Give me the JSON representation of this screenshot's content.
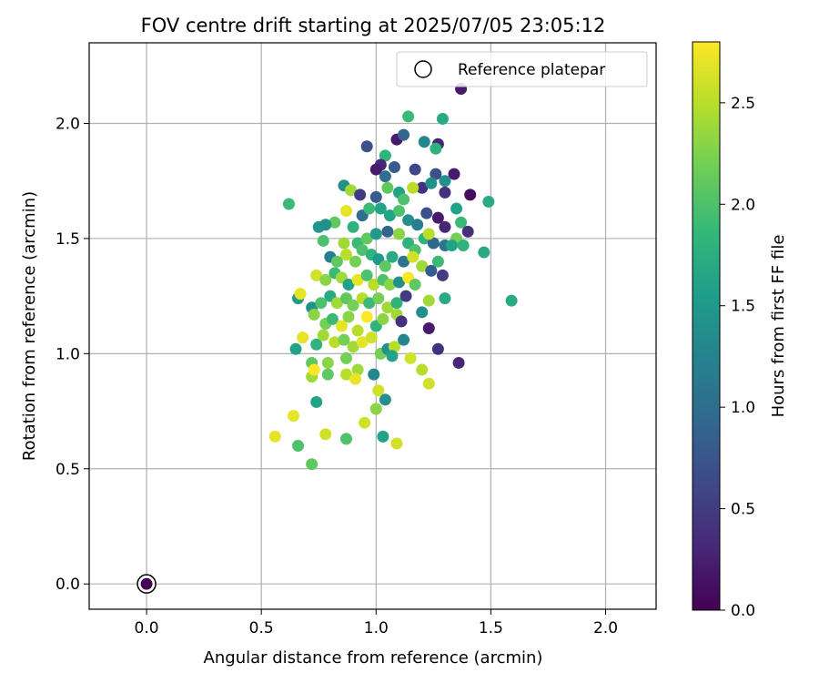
{
  "chart_data": {
    "type": "scatter",
    "title": "FOV centre drift starting at 2025/07/05 23:05:12",
    "xlabel": "Angular distance from reference (arcmin)",
    "ylabel": "Rotation from reference (arcmin)",
    "xlim": [
      -0.25,
      2.22
    ],
    "ylim": [
      -0.11,
      2.35
    ],
    "xticks": [
      "0.0",
      "0.5",
      "1.0",
      "1.5",
      "2.0"
    ],
    "xtick_values": [
      0.0,
      0.5,
      1.0,
      1.5,
      2.0
    ],
    "yticks": [
      "0.0",
      "0.5",
      "1.0",
      "1.5",
      "2.0"
    ],
    "ytick_values": [
      0.0,
      0.5,
      1.0,
      1.5,
      2.0
    ],
    "grid": true,
    "legend": {
      "position": "upper-right",
      "entries": [
        "Reference platepar"
      ]
    },
    "colormap": "viridis",
    "colorbar": {
      "label": "Hours from first FF file",
      "range": [
        0.0,
        2.8
      ],
      "ticks": [
        "0.0",
        "0.5",
        "1.0",
        "1.5",
        "2.0",
        "2.5"
      ],
      "tick_values": [
        0.0,
        0.5,
        1.0,
        1.5,
        2.0,
        2.5
      ]
    },
    "reference_point": {
      "x": 0.0,
      "y": 0.0,
      "hours": 0.0
    },
    "points": [
      [
        1.37,
        2.15,
        0.2
      ],
      [
        1.14,
        2.03,
        1.9
      ],
      [
        1.29,
        2.02,
        1.7
      ],
      [
        0.96,
        1.9,
        0.7
      ],
      [
        1.27,
        1.91,
        0.3
      ],
      [
        1.21,
        1.92,
        1.3
      ],
      [
        1.09,
        1.93,
        0.2
      ],
      [
        1.12,
        1.95,
        0.9
      ],
      [
        1.26,
        1.89,
        1.8
      ],
      [
        1.04,
        1.86,
        1.8
      ],
      [
        1.02,
        1.82,
        0.3
      ],
      [
        1.0,
        1.8,
        0.2
      ],
      [
        1.08,
        1.81,
        0.8
      ],
      [
        1.17,
        1.8,
        0.6
      ],
      [
        1.26,
        1.78,
        0.7
      ],
      [
        1.34,
        1.78,
        0.2
      ],
      [
        1.2,
        1.72,
        0.4
      ],
      [
        1.3,
        1.75,
        1.4
      ],
      [
        1.41,
        1.69,
        0.1
      ],
      [
        1.3,
        1.7,
        0.4
      ],
      [
        0.86,
        1.73,
        1.4
      ],
      [
        0.89,
        1.71,
        2.4
      ],
      [
        0.93,
        1.69,
        0.5
      ],
      [
        1.0,
        1.68,
        0.8
      ],
      [
        1.04,
        1.77,
        1.0
      ],
      [
        1.05,
        1.72,
        2.1
      ],
      [
        1.1,
        1.7,
        1.6
      ],
      [
        1.12,
        1.67,
        2.0
      ],
      [
        1.16,
        1.72,
        2.5
      ],
      [
        1.24,
        1.74,
        1.4
      ],
      [
        1.35,
        1.63,
        1.6
      ],
      [
        1.49,
        1.66,
        1.7
      ],
      [
        0.62,
        1.65,
        1.9
      ],
      [
        0.82,
        1.57,
        2.1
      ],
      [
        0.75,
        1.55,
        1.5
      ],
      [
        0.78,
        1.56,
        1.4
      ],
      [
        0.87,
        1.62,
        2.7
      ],
      [
        0.9,
        1.55,
        1.8
      ],
      [
        0.94,
        1.6,
        1.0
      ],
      [
        0.97,
        1.63,
        1.9
      ],
      [
        1.02,
        1.63,
        1.6
      ],
      [
        1.06,
        1.6,
        1.6
      ],
      [
        1.1,
        1.62,
        2.0
      ],
      [
        1.14,
        1.58,
        1.4
      ],
      [
        1.18,
        1.56,
        1.2
      ],
      [
        1.22,
        1.61,
        0.7
      ],
      [
        1.27,
        1.59,
        0.2
      ],
      [
        1.3,
        1.55,
        0.3
      ],
      [
        1.37,
        1.57,
        1.9
      ],
      [
        1.4,
        1.53,
        0.4
      ],
      [
        1.35,
        1.5,
        2.2
      ],
      [
        1.21,
        1.5,
        1.8
      ],
      [
        1.25,
        1.48,
        0.9
      ],
      [
        1.3,
        1.47,
        1.1
      ],
      [
        1.33,
        1.47,
        1.6
      ],
      [
        1.38,
        1.47,
        1.8
      ],
      [
        1.47,
        1.44,
        1.7
      ],
      [
        0.77,
        1.49,
        2.0
      ],
      [
        0.86,
        1.48,
        2.4
      ],
      [
        0.92,
        1.48,
        1.9
      ],
      [
        0.96,
        1.5,
        2.1
      ],
      [
        1.0,
        1.52,
        1.5
      ],
      [
        1.05,
        1.53,
        0.9
      ],
      [
        1.1,
        1.52,
        2.3
      ],
      [
        1.14,
        1.48,
        1.8
      ],
      [
        1.17,
        1.45,
        2.0
      ],
      [
        1.23,
        1.52,
        2.5
      ],
      [
        1.27,
        1.4,
        1.9
      ],
      [
        0.8,
        1.42,
        1.2
      ],
      [
        0.83,
        1.4,
        2.1
      ],
      [
        0.87,
        1.43,
        2.5
      ],
      [
        0.91,
        1.4,
        2.2
      ],
      [
        0.94,
        1.45,
        2.0
      ],
      [
        0.98,
        1.43,
        1.8
      ],
      [
        1.01,
        1.41,
        1.5
      ],
      [
        1.04,
        1.38,
        2.1
      ],
      [
        1.07,
        1.42,
        1.7
      ],
      [
        1.12,
        1.4,
        1.1
      ],
      [
        1.16,
        1.42,
        2.6
      ],
      [
        1.2,
        1.38,
        2.4
      ],
      [
        1.24,
        1.36,
        0.8
      ],
      [
        1.29,
        1.34,
        0.5
      ],
      [
        0.74,
        1.34,
        2.6
      ],
      [
        0.78,
        1.32,
        2.3
      ],
      [
        0.82,
        1.35,
        1.9
      ],
      [
        0.85,
        1.33,
        2.4
      ],
      [
        0.88,
        1.3,
        1.6
      ],
      [
        0.92,
        1.32,
        2.7
      ],
      [
        0.96,
        1.34,
        2.0
      ],
      [
        0.99,
        1.3,
        2.5
      ],
      [
        1.03,
        1.32,
        2.0
      ],
      [
        1.06,
        1.3,
        2.3
      ],
      [
        1.1,
        1.31,
        1.4
      ],
      [
        1.14,
        1.33,
        2.8
      ],
      [
        1.17,
        1.3,
        2.1
      ],
      [
        0.66,
        1.24,
        1.5
      ],
      [
        0.67,
        1.26,
        2.7
      ],
      [
        0.72,
        1.2,
        1.4
      ],
      [
        0.76,
        1.22,
        2.0
      ],
      [
        0.8,
        1.25,
        1.7
      ],
      [
        0.83,
        1.22,
        2.4
      ],
      [
        0.87,
        1.24,
        2.1
      ],
      [
        0.9,
        1.21,
        2.2
      ],
      [
        0.94,
        1.24,
        2.5
      ],
      [
        0.97,
        1.22,
        1.9
      ],
      [
        1.01,
        1.24,
        2.2
      ],
      [
        1.05,
        1.2,
        2.4
      ],
      [
        1.09,
        1.22,
        1.8
      ],
      [
        1.13,
        1.25,
        0.5
      ],
      [
        1.23,
        1.23,
        2.4
      ],
      [
        1.3,
        1.24,
        1.7
      ],
      [
        1.59,
        1.23,
        1.7
      ],
      [
        0.73,
        1.17,
        2.3
      ],
      [
        0.78,
        1.13,
        2.2
      ],
      [
        0.81,
        1.15,
        1.9
      ],
      [
        0.85,
        1.12,
        2.7
      ],
      [
        0.88,
        1.16,
        2.3
      ],
      [
        0.92,
        1.1,
        2.5
      ],
      [
        0.96,
        1.16,
        2.8
      ],
      [
        1.0,
        1.12,
        1.8
      ],
      [
        1.03,
        1.15,
        2.3
      ],
      [
        1.09,
        1.17,
        2.4
      ],
      [
        1.11,
        1.14,
        0.4
      ],
      [
        1.2,
        1.18,
        1.4
      ],
      [
        1.23,
        1.11,
        0.2
      ],
      [
        0.68,
        1.07,
        2.7
      ],
      [
        0.74,
        1.04,
        1.8
      ],
      [
        0.77,
        1.08,
        2.4
      ],
      [
        0.82,
        1.05,
        2.5
      ],
      [
        0.86,
        1.06,
        2.2
      ],
      [
        0.9,
        1.03,
        2.4
      ],
      [
        0.94,
        1.05,
        2.7
      ],
      [
        0.98,
        1.07,
        2.6
      ],
      [
        1.02,
        1.0,
        2.2
      ],
      [
        1.05,
        1.02,
        1.4
      ],
      [
        1.08,
        1.03,
        2.5
      ],
      [
        1.12,
        1.06,
        1.3
      ],
      [
        1.27,
        1.02,
        0.4
      ],
      [
        0.65,
        1.02,
        1.6
      ],
      [
        0.72,
        0.96,
        2.1
      ],
      [
        0.79,
        0.96,
        2.3
      ],
      [
        0.87,
        0.98,
        2.2
      ],
      [
        0.92,
        0.93,
        2.4
      ],
      [
        0.99,
        0.91,
        1.3
      ],
      [
        1.07,
        0.99,
        1.6
      ],
      [
        1.15,
        0.98,
        2.6
      ],
      [
        1.2,
        0.93,
        2.5
      ],
      [
        1.36,
        0.96,
        0.3
      ],
      [
        0.72,
        0.9,
        2.4
      ],
      [
        0.79,
        0.91,
        2.1
      ],
      [
        0.87,
        0.91,
        2.5
      ],
      [
        0.91,
        0.89,
        2.7
      ],
      [
        0.74,
        0.79,
        1.6
      ],
      [
        1.01,
        0.84,
        2.6
      ],
      [
        1.04,
        0.8,
        1.4
      ],
      [
        1.23,
        0.87,
        2.6
      ],
      [
        1.0,
        0.76,
        2.3
      ],
      [
        0.95,
        0.7,
        2.6
      ],
      [
        0.64,
        0.73,
        2.7
      ],
      [
        0.56,
        0.64,
        2.7
      ],
      [
        0.66,
        0.6,
        2.0
      ],
      [
        0.78,
        0.65,
        2.6
      ],
      [
        0.87,
        0.63,
        2.0
      ],
      [
        1.03,
        0.64,
        1.6
      ],
      [
        1.09,
        0.61,
        2.6
      ],
      [
        0.72,
        0.52,
        2.1
      ],
      [
        0.73,
        0.93,
        2.8
      ]
    ]
  }
}
